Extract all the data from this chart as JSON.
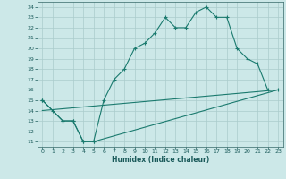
{
  "title": "",
  "xlabel": "Humidex (Indice chaleur)",
  "bg_color": "#cce8e8",
  "grid_color": "#aacccc",
  "line_color": "#1a7a6e",
  "xlim": [
    -0.5,
    23.5
  ],
  "ylim": [
    10.5,
    24.5
  ],
  "xticks": [
    0,
    1,
    2,
    3,
    4,
    5,
    6,
    7,
    8,
    9,
    10,
    11,
    12,
    13,
    14,
    15,
    16,
    17,
    18,
    19,
    20,
    21,
    22,
    23
  ],
  "yticks": [
    11,
    12,
    13,
    14,
    15,
    16,
    17,
    18,
    19,
    20,
    21,
    22,
    23,
    24
  ],
  "line1_x": [
    0,
    1,
    2,
    3,
    4,
    5,
    6,
    7,
    8,
    9,
    10,
    11,
    12,
    13,
    14,
    15,
    16,
    17,
    18,
    19,
    20,
    21,
    22
  ],
  "line1_y": [
    15,
    14,
    13,
    13,
    11,
    11,
    15,
    17,
    18,
    20,
    20.5,
    21.5,
    23,
    22,
    22,
    23.5,
    24,
    23,
    23,
    20,
    19,
    18.5,
    16
  ],
  "line2_x": [
    0,
    2,
    3,
    4,
    5,
    23
  ],
  "line2_y": [
    15,
    13,
    13,
    11,
    11,
    16
  ],
  "line3_x": [
    0,
    23
  ],
  "line3_y": [
    14,
    16
  ]
}
